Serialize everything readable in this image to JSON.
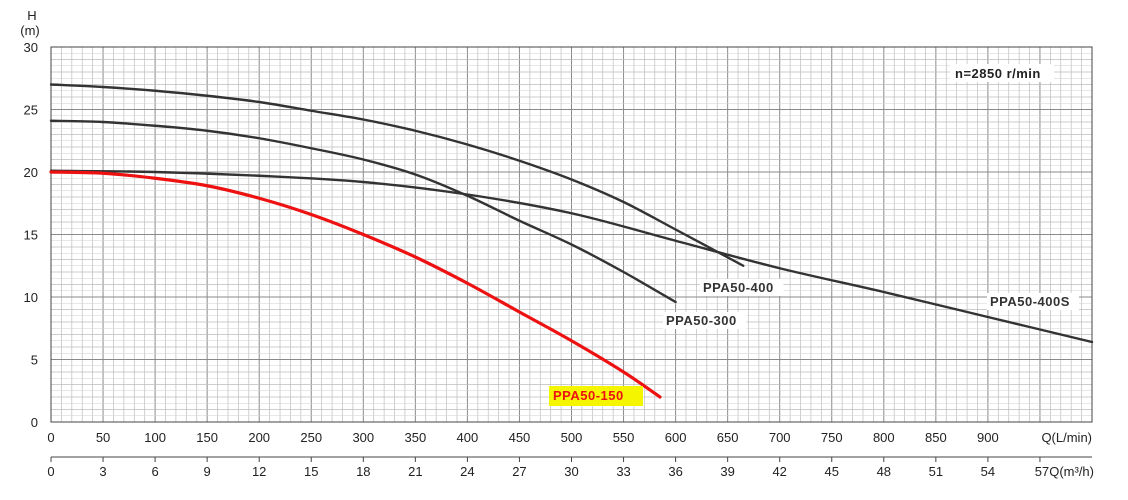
{
  "chart_data": {
    "type": "line",
    "y_axis": {
      "label_top": "H",
      "label_unit": "(m)",
      "min": 0,
      "max": 30,
      "ticks": [
        "0",
        "5",
        "10",
        "15",
        "20",
        "25",
        "30"
      ]
    },
    "x_axis": {
      "label": "Q(L/min)",
      "min": 0,
      "max": 1000,
      "ticks": [
        "0",
        "50",
        "100",
        "150",
        "200",
        "250",
        "300",
        "350",
        "400",
        "450",
        "500",
        "550",
        "600",
        "650",
        "700",
        "750",
        "800",
        "850",
        "900"
      ]
    },
    "x2_axis": {
      "label": "Q(m³/h)",
      "ticks": [
        "0",
        "3",
        "6",
        "9",
        "12",
        "15",
        "18",
        "21",
        "24",
        "27",
        "30",
        "33",
        "36",
        "39",
        "42",
        "45",
        "48",
        "51",
        "54",
        "57"
      ]
    },
    "annotation": "n=2850 r/min",
    "grid": true,
    "series": [
      {
        "name": "PPA50-150",
        "color": "#ee1111",
        "label_bg": "#f5f500",
        "label_color": "#ee1111",
        "x": [
          0,
          50,
          100,
          150,
          200,
          250,
          300,
          350,
          400,
          450,
          500,
          550,
          585
        ],
        "y": [
          20,
          19.9,
          19.5,
          18.9,
          17.9,
          16.6,
          15,
          13.2,
          11.1,
          8.8,
          6.5,
          4,
          2
        ]
      },
      {
        "name": "PPA50-300",
        "color": "#333333",
        "label_color": "#333333",
        "x": [
          0,
          50,
          100,
          150,
          200,
          250,
          300,
          350,
          400,
          450,
          500,
          550,
          600
        ],
        "y": [
          24.1,
          24,
          23.7,
          23.3,
          22.7,
          21.9,
          21,
          19.8,
          18.1,
          16.1,
          14.2,
          12,
          9.6
        ]
      },
      {
        "name": "PPA50-400",
        "color": "#333333",
        "label_color": "#333333",
        "x": [
          0,
          50,
          100,
          150,
          200,
          250,
          300,
          350,
          400,
          450,
          500,
          550,
          600,
          665
        ],
        "y": [
          27,
          26.8,
          26.5,
          26.1,
          25.6,
          24.9,
          24.2,
          23.3,
          22.2,
          20.9,
          19.4,
          17.6,
          15.4,
          12.5
        ]
      },
      {
        "name": "PPA50-400S",
        "color": "#333333",
        "label_color": "#333333",
        "x": [
          0,
          100,
          200,
          300,
          400,
          500,
          600,
          700,
          800,
          900,
          1000
        ],
        "y": [
          20.1,
          20,
          19.7,
          19.2,
          18.2,
          16.7,
          14.5,
          12.3,
          10.4,
          8.4,
          6.4
        ]
      }
    ]
  }
}
